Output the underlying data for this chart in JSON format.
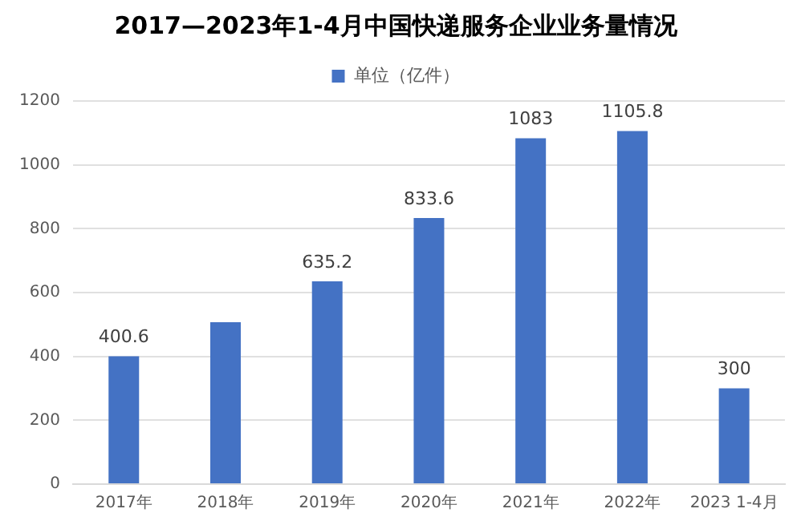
{
  "chart_data": {
    "type": "bar",
    "title": "2017—2023年1-4月中国快递服务企业业务量情况",
    "categories": [
      "2017年",
      "2018年",
      "2019年",
      "2020年",
      "2021年",
      "2022年",
      "2023 1-4月"
    ],
    "series": [
      {
        "name": "单位（亿件）",
        "color": "#4472c4",
        "values": [
          400.6,
          507,
          635.2,
          833.6,
          1083,
          1105.8,
          300
        ],
        "value_labels": [
          "400.6",
          null,
          "635.2",
          "833.6",
          "1083",
          "1105.8",
          "300"
        ]
      }
    ],
    "ylim": [
      0,
      1200
    ],
    "yticks": [
      0,
      200,
      400,
      600,
      800,
      1000,
      1200
    ],
    "grid": "y",
    "legend": "top"
  }
}
